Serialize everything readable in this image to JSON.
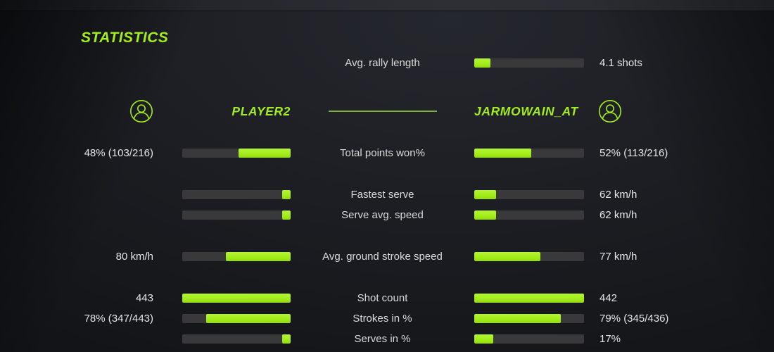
{
  "page": {
    "title": "STATISTICS"
  },
  "colors": {
    "accent": "#a3ee1a",
    "separator": "#7fb335",
    "track": "#39393b",
    "label_text": "#d9dadb",
    "value_text": "#e4e5e6"
  },
  "summary_row": {
    "label": "Avg. rally length",
    "value": "4.1 shots",
    "pct": 15
  },
  "players": {
    "left": {
      "name": "PLAYER2",
      "icon": "person-circle-icon"
    },
    "right": {
      "name": "JARMOWAIN_AT",
      "icon": "person-circle-icon"
    }
  },
  "stats": [
    {
      "label": "Total points won%",
      "left_value": "48% (103/216)",
      "left_pct": 48,
      "right_value": "52% (113/216)",
      "right_pct": 52,
      "group_start": false
    },
    {
      "label": "Fastest serve",
      "left_value": "",
      "left_pct": 8,
      "right_value": "62 km/h",
      "right_pct": 20,
      "group_start": true
    },
    {
      "label": "Serve avg. speed",
      "left_value": "",
      "left_pct": 8,
      "right_value": "62 km/h",
      "right_pct": 20,
      "group_start": false
    },
    {
      "label": "Avg. ground stroke speed",
      "left_value": "80 km/h",
      "left_pct": 60,
      "right_value": "77 km/h",
      "right_pct": 60,
      "group_start": true
    },
    {
      "label": "Shot count",
      "left_value": "443",
      "left_pct": 100,
      "right_value": "442",
      "right_pct": 100,
      "group_start": true
    },
    {
      "label": "Strokes in %",
      "left_value": "78% (347/443)",
      "left_pct": 78,
      "right_value": "79% (345/436)",
      "right_pct": 79,
      "group_start": false
    },
    {
      "label": "Serves in %",
      "left_value": "",
      "left_pct": 8,
      "right_value": "17%",
      "right_pct": 17,
      "group_start": false
    }
  ]
}
